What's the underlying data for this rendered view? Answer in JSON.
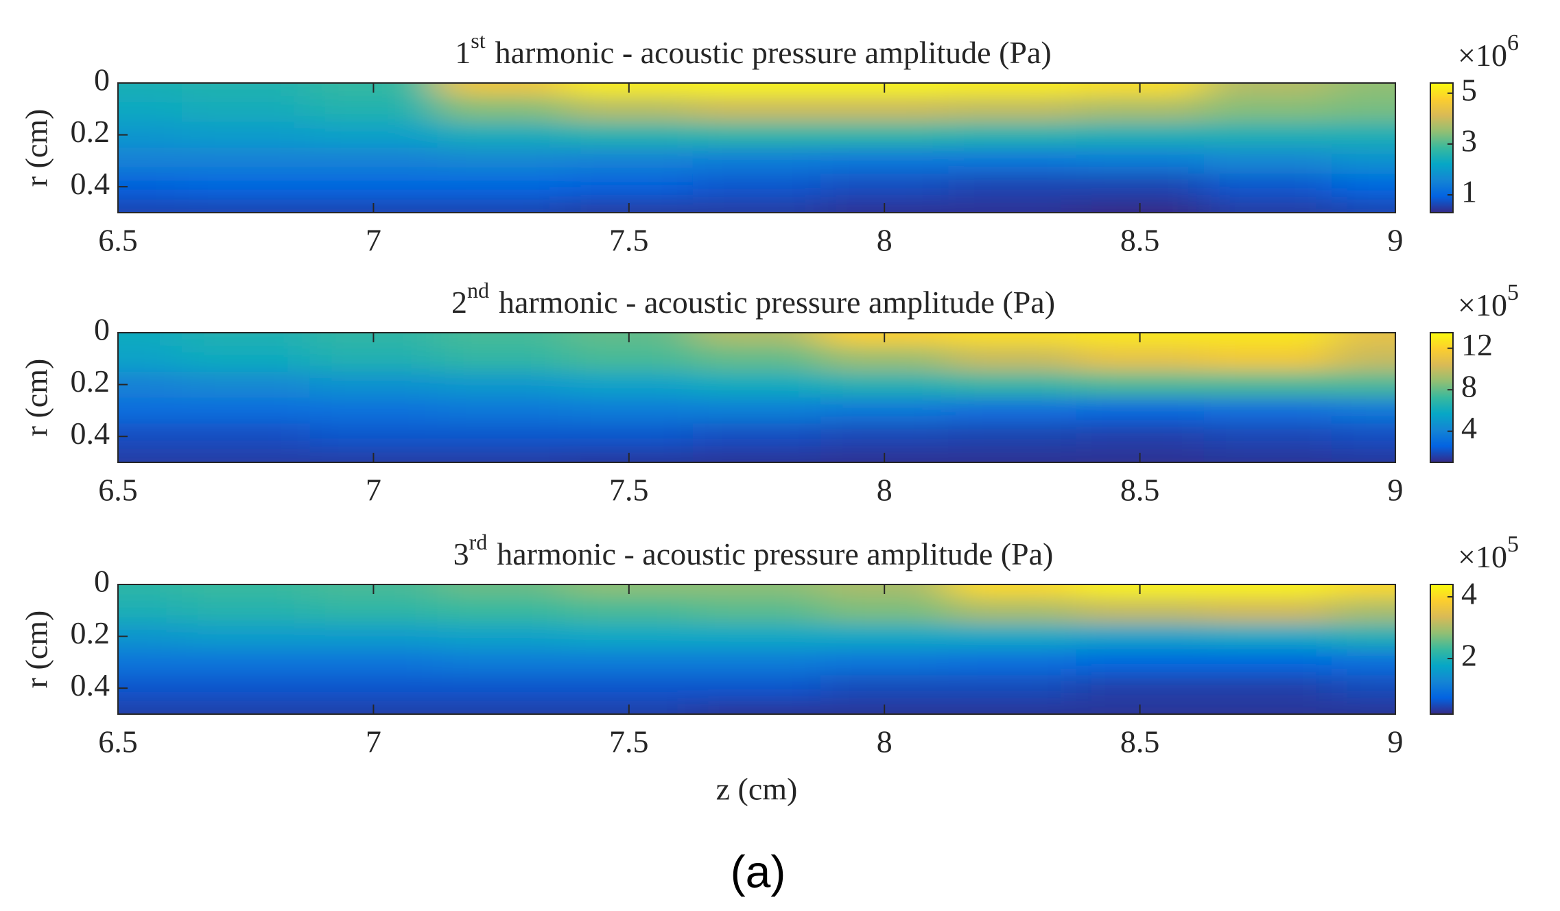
{
  "caption": "(a)",
  "chart_data": [
    {
      "type": "heatmap",
      "title_number": "1",
      "title_sup": "st",
      "title_text": "harmonic - acoustic pressure amplitude (Pa)",
      "ylabel": "r (cm)",
      "xlim": [
        6.5,
        9
      ],
      "xticks": [
        6.5,
        7,
        7.5,
        8,
        8.5,
        9
      ],
      "ylim": [
        0,
        0.5
      ],
      "yticks": [
        0,
        0.2,
        0.4
      ],
      "y_direction": "reverse",
      "x": [
        6.5,
        6.75,
        7,
        7.25,
        7.5,
        7.75,
        8,
        8.25,
        8.5,
        8.75,
        9
      ],
      "y": [
        0,
        0.1,
        0.2,
        0.3,
        0.4,
        0.5
      ],
      "values": [
        [
          2.5,
          2.6,
          2.8,
          4.5,
          5.2,
          5.3,
          5.3,
          5.2,
          5.0,
          3.8,
          3.5
        ],
        [
          2.3,
          2.4,
          2.6,
          3.4,
          3.8,
          4.0,
          4.0,
          3.9,
          3.7,
          3.4,
          3.3
        ],
        [
          1.9,
          2.0,
          2.1,
          2.4,
          2.6,
          2.7,
          2.7,
          2.6,
          2.5,
          2.5,
          2.5
        ],
        [
          1.5,
          1.5,
          1.5,
          1.6,
          1.5,
          1.4,
          1.3,
          1.3,
          1.4,
          1.6,
          1.8
        ],
        [
          0.9,
          1.0,
          1.0,
          1.0,
          0.9,
          0.8,
          0.7,
          0.6,
          0.6,
          0.8,
          1.0
        ],
        [
          0.6,
          0.6,
          0.6,
          0.6,
          0.5,
          0.5,
          0.4,
          0.4,
          0.3,
          0.5,
          0.6
        ]
      ],
      "clim": [
        0.3,
        5.4
      ],
      "cticks": [
        1,
        3,
        5
      ],
      "cbar_multiplier": "×10",
      "cbar_exponent": "6",
      "colormap": [
        "#352a87",
        "#0363e1",
        "#1485d4",
        "#06a7c6",
        "#38b99e",
        "#92bf73",
        "#d9ba56",
        "#fcce2e",
        "#f9fb0e"
      ]
    },
    {
      "type": "heatmap",
      "title_number": "2",
      "title_sup": "nd",
      "title_text": "harmonic - acoustic pressure amplitude (Pa)",
      "ylabel": "r (cm)",
      "xlim": [
        6.5,
        9
      ],
      "xticks": [
        6.5,
        7,
        7.5,
        8,
        8.5,
        9
      ],
      "ylim": [
        0,
        0.5
      ],
      "yticks": [
        0,
        0.2,
        0.4
      ],
      "y_direction": "reverse",
      "x": [
        6.5,
        6.75,
        7,
        7.25,
        7.5,
        7.75,
        8,
        8.25,
        8.5,
        8.75,
        9
      ],
      "y": [
        0,
        0.1,
        0.2,
        0.3,
        0.4,
        0.5
      ],
      "values": [
        [
          6,
          6.5,
          7,
          7.5,
          8,
          9.5,
          12,
          12.5,
          12.8,
          12.8,
          11
        ],
        [
          5.5,
          6,
          6.5,
          7,
          7.5,
          8,
          9,
          10,
          11,
          11.5,
          10
        ],
        [
          4,
          4.3,
          4.7,
          5,
          5.5,
          6,
          6.5,
          7,
          7.5,
          7.5,
          7.5
        ],
        [
          3,
          3,
          3.2,
          3.5,
          3.7,
          3.8,
          3.5,
          3,
          2.8,
          3,
          3.5
        ],
        [
          2,
          2,
          2.2,
          2.2,
          2.2,
          2,
          1.8,
          1.7,
          1.6,
          1.8,
          2
        ],
        [
          1.5,
          1.5,
          1.5,
          1.5,
          1.4,
          1.3,
          1.2,
          1.2,
          1.2,
          1.3,
          1.4
        ]
      ],
      "clim": [
        1,
        13.5
      ],
      "cticks": [
        4,
        8,
        12
      ],
      "cbar_multiplier": "×10",
      "cbar_exponent": "5",
      "colormap": [
        "#352a87",
        "#0363e1",
        "#1485d4",
        "#06a7c6",
        "#38b99e",
        "#92bf73",
        "#d9ba56",
        "#fcce2e",
        "#f9fb0e"
      ]
    },
    {
      "type": "heatmap",
      "title_number": "3",
      "title_sup": "rd",
      "title_text": "harmonic - acoustic pressure amplitude (Pa)",
      "ylabel": "r (cm)",
      "xlabel": "z (cm)",
      "xlim": [
        6.5,
        9
      ],
      "xticks": [
        6.5,
        7,
        7.5,
        8,
        8.5,
        9
      ],
      "ylim": [
        0,
        0.5
      ],
      "yticks": [
        0,
        0.2,
        0.4
      ],
      "y_direction": "reverse",
      "x": [
        6.5,
        6.75,
        7,
        7.25,
        7.5,
        7.75,
        8,
        8.25,
        8.5,
        8.75,
        9
      ],
      "y": [
        0,
        0.1,
        0.2,
        0.3,
        0.4,
        0.5
      ],
      "values": [
        [
          2.2,
          2.3,
          2.4,
          2.6,
          2.8,
          2.8,
          3.0,
          4.0,
          4.3,
          4.3,
          4.0
        ],
        [
          2.0,
          2.1,
          2.2,
          2.3,
          2.4,
          2.5,
          2.7,
          3.0,
          3.2,
          3.3,
          3.0
        ],
        [
          1.5,
          1.6,
          1.6,
          1.7,
          1.8,
          1.8,
          1.8,
          1.8,
          1.7,
          1.8,
          2.0
        ],
        [
          1.0,
          1.0,
          1.0,
          1.1,
          1.1,
          1.1,
          1.0,
          0.9,
          0.8,
          0.8,
          0.9
        ],
        [
          0.6,
          0.6,
          0.6,
          0.6,
          0.6,
          0.6,
          0.5,
          0.5,
          0.4,
          0.4,
          0.5
        ],
        [
          0.4,
          0.4,
          0.4,
          0.4,
          0.4,
          0.3,
          0.3,
          0.3,
          0.3,
          0.3,
          0.3
        ]
      ],
      "clim": [
        0.2,
        4.4
      ],
      "cticks": [
        2,
        4
      ],
      "cbar_multiplier": "×10",
      "cbar_exponent": "5",
      "colormap": [
        "#352a87",
        "#0363e1",
        "#1485d4",
        "#06a7c6",
        "#38b99e",
        "#92bf73",
        "#d9ba56",
        "#fcce2e",
        "#f9fb0e"
      ]
    }
  ]
}
